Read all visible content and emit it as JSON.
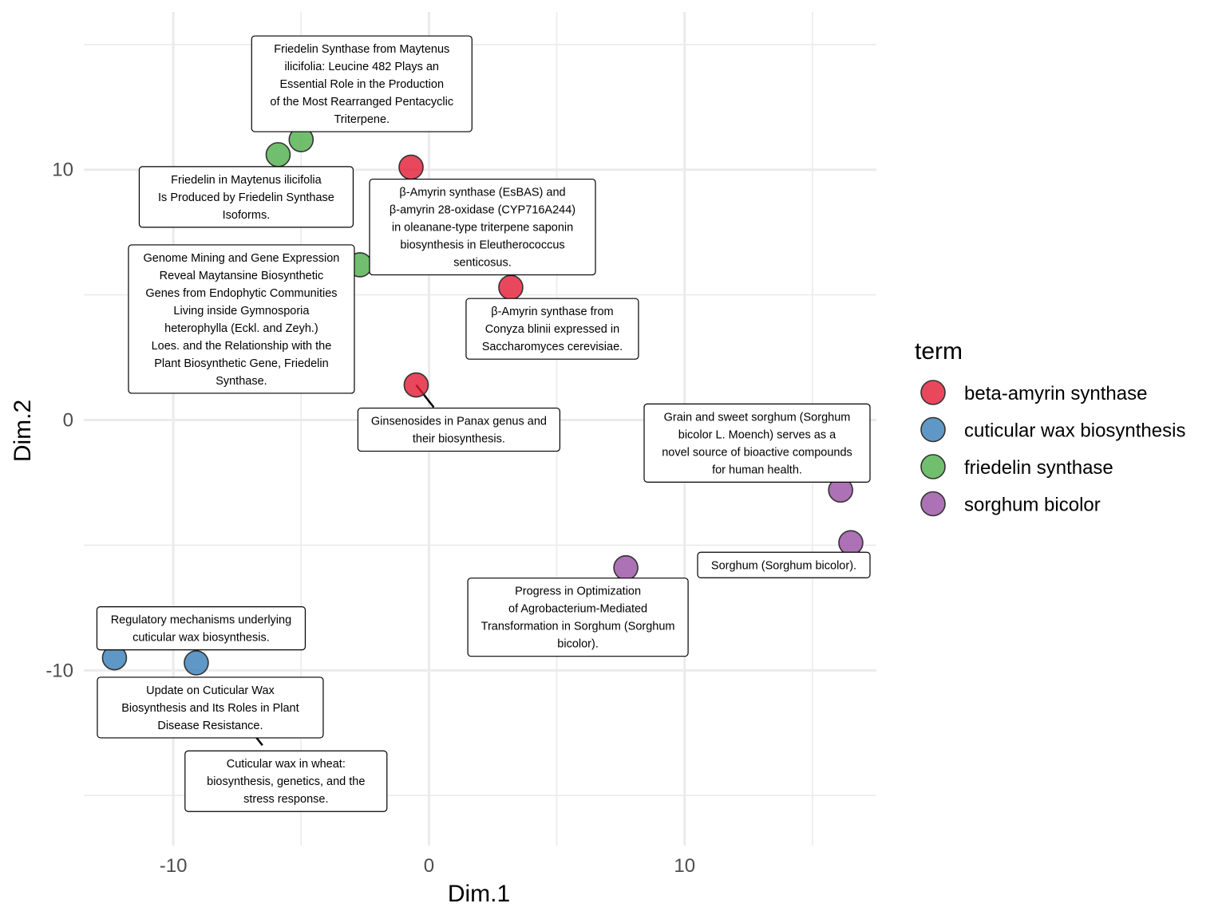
{
  "chart_data": {
    "type": "scatter",
    "title": "",
    "xlabel": "Dim.1",
    "ylabel": "Dim.2",
    "xlim": [
      -13.5,
      17.5
    ],
    "ylim": [
      -17,
      16.3
    ],
    "x_ticks": [
      -10,
      0,
      10
    ],
    "y_ticks": [
      -10,
      0,
      10
    ],
    "x_tick_labels": [
      "-10",
      "0",
      "10"
    ],
    "y_tick_labels": [
      "-10",
      "0",
      "10"
    ],
    "grid": true,
    "legend": {
      "title": "term",
      "position": "right",
      "entries": [
        {
          "name": "beta-amyrin synthase",
          "color": "#e41a33"
        },
        {
          "name": "cuticular wax biosynthesis",
          "color": "#377eb8"
        },
        {
          "name": "friedelin synthase",
          "color": "#4daf4a"
        },
        {
          "name": "sorghum bicolor",
          "color": "#984ea3"
        }
      ]
    },
    "series": [
      {
        "name": "beta-amyrin synthase",
        "color": "#e41a33",
        "points": [
          {
            "x": -0.7,
            "y": 10.1,
            "label": [
              "β-Amyrin synthase (EsBAS) and",
              "β-amyrin 28-oxidase (CYP716A244)",
              "in oleanane-type triterpene saponin",
              "biosynthesis in Eleutherococcus",
              "senticosus."
            ],
            "label_pos": "below-right"
          },
          {
            "x": 3.2,
            "y": 5.3,
            "label": [
              "β-Amyrin synthase from",
              "Conyza blinii expressed in",
              "Saccharomyces cerevisiae."
            ],
            "label_pos": "below-right"
          },
          {
            "x": -0.5,
            "y": 1.4,
            "label": [
              "Ginsenosides in Panax genus and",
              "their biosynthesis."
            ],
            "label_pos": "below-right"
          }
        ]
      },
      {
        "name": "cuticular wax biosynthesis",
        "color": "#377eb8",
        "points": [
          {
            "x": -12.3,
            "y": -9.5,
            "label": [
              "Regulatory mechanisms underlying",
              "cuticular wax biosynthesis."
            ],
            "label_pos": "above-right"
          },
          {
            "x": -9.1,
            "y": -9.7,
            "label": [
              "Update on Cuticular Wax",
              "Biosynthesis and Its Roles in Plant",
              "Disease Resistance."
            ],
            "label_pos": "below"
          },
          {
            "x": -7.2,
            "y": -12.1,
            "label": [
              "Cuticular wax in wheat:",
              "biosynthesis, genetics, and the",
              "stress response."
            ],
            "label_pos": "below-right"
          }
        ]
      },
      {
        "name": "friedelin synthase",
        "color": "#4daf4a",
        "points": [
          {
            "x": -5.0,
            "y": 11.2,
            "label": [
              "Friedelin Synthase from Maytenus",
              "ilicifolia: Leucine 482 Plays an",
              "Essential Role in the Production",
              "of the Most Rearranged Pentacyclic",
              "Triterpene."
            ],
            "label_pos": "above-right"
          },
          {
            "x": -5.9,
            "y": 10.6,
            "label": [
              "Friedelin in Maytenus ilicifolia",
              "Is Produced by Friedelin Synthase",
              "Isoforms."
            ],
            "label_pos": "below-left"
          },
          {
            "x": -2.7,
            "y": 6.2,
            "label": [
              "Genome Mining and Gene Expression",
              "Reveal Maytansine Biosynthetic",
              "Genes from Endophytic Communities",
              "Living inside Gymnosporia",
              "heterophylla (Eckl. and Zeyh.)",
              "Loes. and the Relationship with the",
              "Plant Biosynthetic Gene, Friedelin",
              "Synthase."
            ],
            "label_pos": "left"
          }
        ]
      },
      {
        "name": "sorghum bicolor",
        "color": "#984ea3",
        "points": [
          {
            "x": 16.1,
            "y": -2.8,
            "label": [
              "Grain and sweet sorghum (Sorghum",
              "bicolor L. Moench) serves as a",
              "novel source of bioactive compounds",
              "for human health."
            ],
            "label_pos": "above-left"
          },
          {
            "x": 16.5,
            "y": -4.9,
            "label": [
              "Sorghum (Sorghum bicolor)."
            ],
            "label_pos": "below-left"
          },
          {
            "x": 7.7,
            "y": -5.9,
            "label": [
              "Progress in Optimization",
              "of Agrobacterium-Mediated",
              "Transformation in Sorghum (Sorghum",
              "bicolor)."
            ],
            "label_pos": "below-left"
          }
        ]
      }
    ]
  }
}
